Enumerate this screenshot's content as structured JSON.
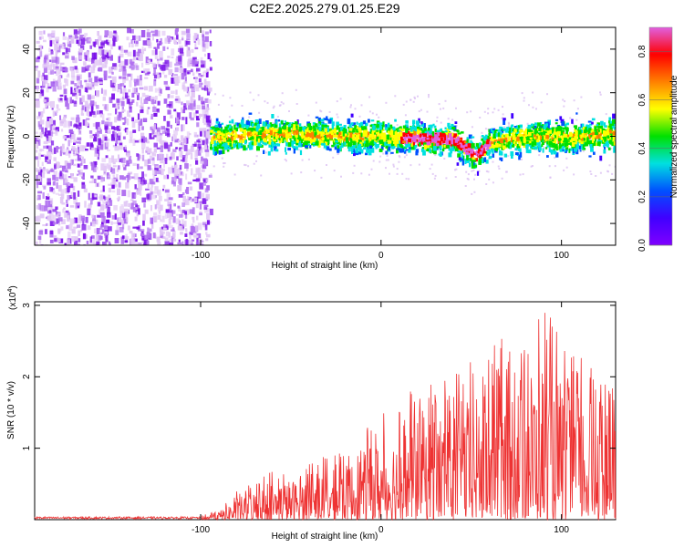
{
  "title": "C2E2.2025.279.01.25.E29",
  "chart_data": [
    {
      "type": "heatmap",
      "xlabel": "Height of straight line (km)",
      "ylabel": "Frequency (Hz)",
      "xlim": [
        -192,
        130
      ],
      "ylim": [
        -50,
        50
      ],
      "xticks": [
        -100,
        0,
        100
      ],
      "xtick_labels": [
        "-100",
        "0",
        "100"
      ],
      "yticks": [
        -40,
        -20,
        0,
        20,
        40
      ],
      "ytick_labels": [
        "-40",
        "-20",
        "0",
        "20",
        "40"
      ],
      "colorbar": {
        "label": "Normalized spectral amplitude",
        "range": [
          0,
          0.9
        ],
        "ticks": [
          0,
          0.2,
          0.4,
          0.6,
          0.8
        ],
        "tick_labels": [
          "0.0",
          "0.2",
          "0.4",
          "0.6",
          "0.8"
        ],
        "colors": [
          "#e060e0",
          "#ff0000",
          "#ff8000",
          "#ffff00",
          "#00e000",
          "#00e0e0",
          "#0050ff",
          "#4000ff",
          "#8000ff"
        ]
      },
      "noise_region_x": [
        -192,
        -95
      ],
      "band_center_curve": {
        "x": [
          -95,
          -60,
          -20,
          0,
          20,
          40,
          52,
          60,
          80,
          100,
          130
        ],
        "y": [
          0,
          2,
          1,
          1,
          0,
          -1,
          -8,
          -2,
          1,
          0,
          2
        ]
      }
    },
    {
      "type": "line",
      "xlabel": "Height of straight line (km)",
      "ylabel": "SNR (10 * v/v)",
      "y_multiplier": "(x10",
      "y_multiplier_exp": "4",
      "y_multiplier_close": ")",
      "xlim": [
        -192,
        130
      ],
      "ylim": [
        0,
        3.05
      ],
      "xticks": [
        -100,
        0,
        100
      ],
      "xtick_labels": [
        "-100",
        "0",
        "100"
      ],
      "yticks": [
        1,
        2,
        3
      ],
      "ytick_labels": [
        "1",
        "2",
        "3"
      ],
      "color": "#ee3333",
      "envelope": {
        "x": [
          -192,
          -100,
          -90,
          -80,
          -60,
          -40,
          -20,
          0,
          20,
          40,
          60,
          80,
          90,
          100,
          110,
          120,
          130
        ],
        "y": [
          0.03,
          0.05,
          0.15,
          0.4,
          0.7,
          0.8,
          1.0,
          1.5,
          1.9,
          2.1,
          2.4,
          2.8,
          3.0,
          2.6,
          2.4,
          2.1,
          1.8
        ]
      }
    }
  ]
}
